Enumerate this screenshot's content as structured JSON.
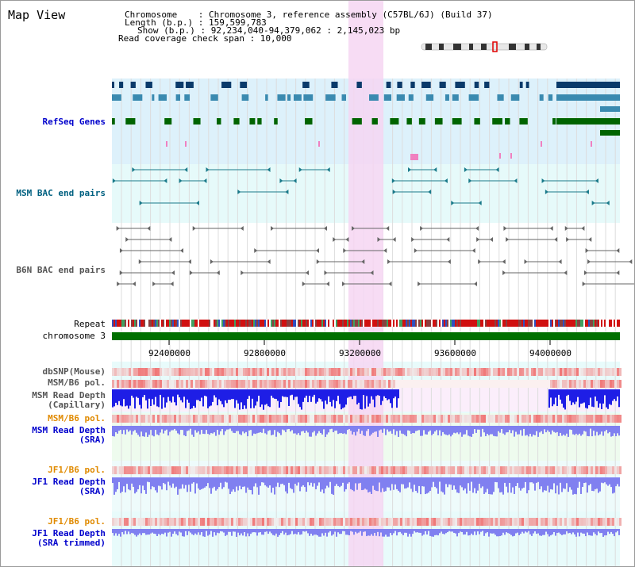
{
  "view_title": "Map View",
  "info": {
    "lines": [
      "Chromosome    : Chromosome 3, reference assembly (C57BL/6J) (Build 37)",
      "Length (b.p.) : 159,599,783",
      "Show (b.p.) : 92,234,040-94,379,062 : 2,145,023 bp",
      "Read coverage check span : 10,000"
    ]
  },
  "tracks": {
    "refseq": "RefSeq Genes",
    "msm_bac": "MSM BAC end pairs",
    "b6n_bac": "B6N BAC end pairs",
    "repeat": "Repeat",
    "chromosome": "chromosome 3",
    "dbsnp": "dbSNP(Mouse)",
    "msm_b6_pol_1": "MSM/B6 pol.",
    "msm_read_cap": "MSM Read Depth\n(Capillary)",
    "msm_b6_pol_2": "MSM/B6 pol.",
    "msm_read_sra": "MSM Read Depth\n(SRA)",
    "jf1_b6_pol_1": "JF1/B6 pol.",
    "jf1_read_sra": "JF1 Read Depth\n(SRA)",
    "jf1_b6_pol_2": "JF1/B6 pol.",
    "jf1_read_trim": "JF1 Read Depth\n(SRA trimmed)"
  },
  "axis": {
    "ticks": [
      "92400000",
      "92800000",
      "93200000",
      "93600000",
      "94000000"
    ]
  },
  "colors": {
    "highlight": "#f6d6f2",
    "refseq_bg": "#ddf1fb",
    "bac_bg": "#e6fafa",
    "chrom_bar": "#007000",
    "read_blue": "#1e1ee6",
    "read_light": "#8080f0",
    "pol_red": "#ee2222"
  }
}
